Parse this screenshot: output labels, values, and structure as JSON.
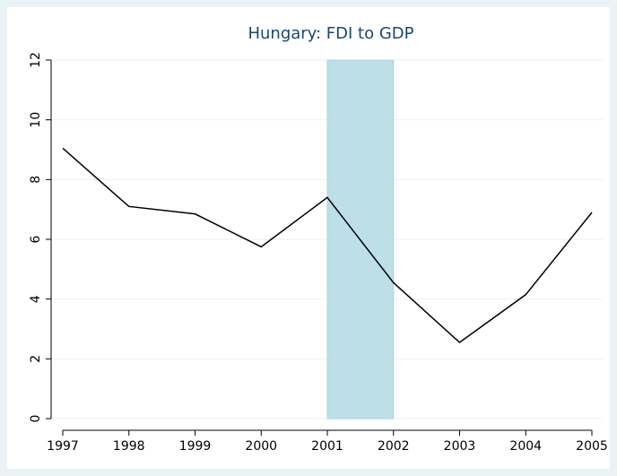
{
  "chart_data": {
    "type": "line",
    "title": "Hungary: FDI to GDP",
    "x": [
      1997,
      1998,
      1999,
      2000,
      2001,
      2002,
      2003,
      2004,
      2005
    ],
    "series": [
      {
        "color": "#000000",
        "values": [
          9.05,
          7.1,
          6.85,
          5.75,
          7.4,
          4.55,
          2.55,
          4.15,
          6.9
        ]
      }
    ],
    "highlight_x": [
      2001,
      2002
    ],
    "highlight_color": "#bcdfe8",
    "xlim": [
      1997,
      2005
    ],
    "xticks": [
      1997,
      1998,
      1999,
      2000,
      2001,
      2002,
      2003,
      2004,
      2005
    ],
    "ylim": [
      0,
      12
    ],
    "yticks": [
      0,
      2,
      4,
      6,
      8,
      10,
      12
    ],
    "grid": true
  }
}
